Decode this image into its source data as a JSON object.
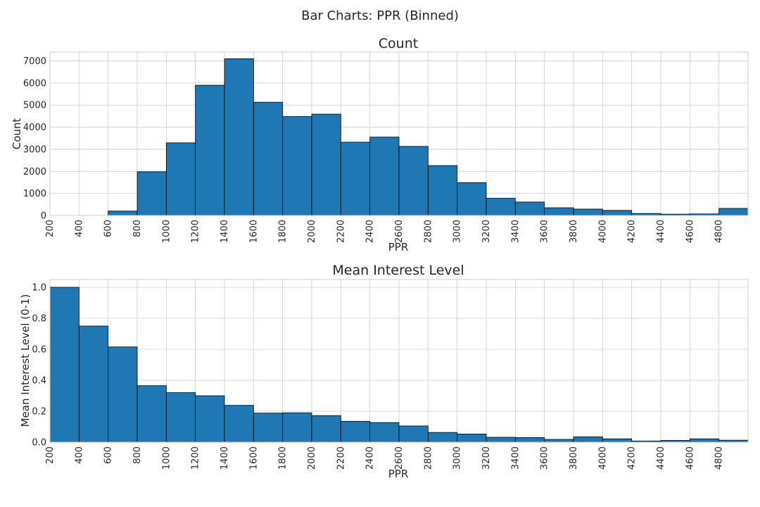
{
  "figure": {
    "suptitle": "Bar Charts: PPR (Binned)"
  },
  "colors": {
    "bar_fill": "#1f77b4",
    "bar_edge": "#000000",
    "grid": "#cccccc"
  },
  "chart_data": [
    {
      "type": "bar",
      "title": "Count",
      "xlabel": "PPR",
      "ylabel": "Count",
      "bin_edges": [
        200,
        400,
        600,
        800,
        1000,
        1200,
        1400,
        1600,
        1800,
        2000,
        2200,
        2400,
        2600,
        2800,
        3000,
        3200,
        3400,
        3600,
        3800,
        4000,
        4200,
        4400,
        4600,
        4800,
        5000
      ],
      "x_ticks": [
        200,
        400,
        600,
        800,
        1000,
        1200,
        1400,
        1600,
        1800,
        2000,
        2200,
        2400,
        2600,
        2800,
        3000,
        3200,
        3400,
        3600,
        3800,
        4000,
        4200,
        4400,
        4600,
        4800
      ],
      "values": [
        0,
        0,
        200,
        1980,
        3290,
        5900,
        7100,
        5130,
        4480,
        4590,
        3320,
        3550,
        3130,
        2260,
        1490,
        780,
        610,
        350,
        290,
        230,
        90,
        60,
        70,
        320
      ],
      "xlim": [
        200,
        5000
      ],
      "ylim": [
        0,
        7400
      ],
      "y_ticks": [
        0,
        1000,
        2000,
        3000,
        4000,
        5000,
        6000,
        7000
      ],
      "grid": true
    },
    {
      "type": "bar",
      "title": "Mean Interest Level",
      "xlabel": "PPR",
      "ylabel": "Mean Interest Level (0-1)",
      "bin_edges": [
        200,
        400,
        600,
        800,
        1000,
        1200,
        1400,
        1600,
        1800,
        2000,
        2200,
        2400,
        2600,
        2800,
        3000,
        3200,
        3400,
        3600,
        3800,
        4000,
        4200,
        4400,
        4600,
        4800,
        5000
      ],
      "x_ticks": [
        200,
        400,
        600,
        800,
        1000,
        1200,
        1400,
        1600,
        1800,
        2000,
        2200,
        2400,
        2600,
        2800,
        3000,
        3200,
        3400,
        3600,
        3800,
        4000,
        4200,
        4400,
        4600,
        4800
      ],
      "values": [
        1.0,
        0.75,
        0.615,
        0.365,
        0.32,
        0.3,
        0.238,
        0.188,
        0.19,
        0.172,
        0.135,
        0.127,
        0.105,
        0.063,
        0.053,
        0.032,
        0.03,
        0.018,
        0.035,
        0.022,
        0.008,
        0.012,
        0.022,
        0.013
      ],
      "xlim": [
        200,
        5000
      ],
      "ylim": [
        0,
        1.05
      ],
      "y_ticks": [
        0.0,
        0.2,
        0.4,
        0.6,
        0.8,
        1.0
      ],
      "y_tick_labels": [
        "0.0",
        "0.2",
        "0.4",
        "0.6",
        "0.8",
        "1.0"
      ],
      "grid": true
    }
  ]
}
